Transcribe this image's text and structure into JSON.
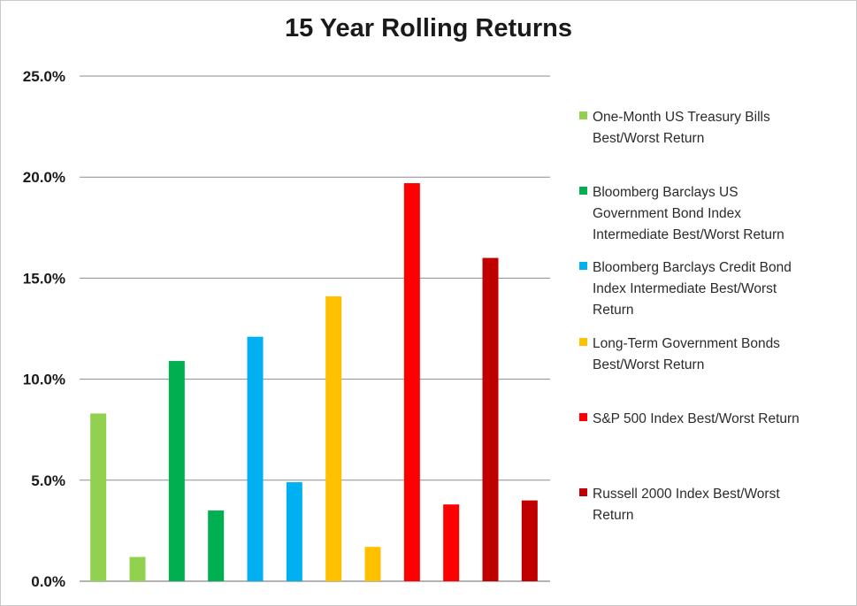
{
  "chart_data": {
    "type": "bar",
    "title": "15 Year Rolling Returns",
    "xlabel": "",
    "ylabel": "",
    "ylim": [
      0,
      25
    ],
    "yticks": [
      "0.0%",
      "5.0%",
      "10.0%",
      "15.0%",
      "20.0%",
      "25.0%"
    ],
    "grid": true,
    "legend_position": "right",
    "bars": [
      {
        "series": 0,
        "value": 8.3
      },
      {
        "series": 0,
        "value": 1.2
      },
      {
        "series": 1,
        "value": 10.9
      },
      {
        "series": 1,
        "value": 3.5
      },
      {
        "series": 2,
        "value": 12.1
      },
      {
        "series": 2,
        "value": 4.9
      },
      {
        "series": 3,
        "value": 14.1
      },
      {
        "series": 3,
        "value": 1.7
      },
      {
        "series": 4,
        "value": 19.7
      },
      {
        "series": 4,
        "value": 3.8
      },
      {
        "series": 5,
        "value": 16.0
      },
      {
        "series": 5,
        "value": 4.0
      }
    ],
    "series": [
      {
        "name": "One-Month US Treasury Bills Best/Worst Return",
        "lines": [
          "One-Month US Treasury Bills",
          "Best/Worst Return"
        ],
        "color": "#92d050"
      },
      {
        "name": "Bloomberg Barclays US Government Bond Index Intermediate Best/Worst Return",
        "lines": [
          "Bloomberg Barclays US",
          "Government Bond Index",
          "Intermediate Best/Worst Return"
        ],
        "color": "#00b050"
      },
      {
        "name": "Bloomberg Barclays Credit Bond Index Intermediate Best/Worst Return",
        "lines": [
          "Bloomberg Barclays Credit Bond",
          "Index Intermediate Best/Worst",
          "Return"
        ],
        "color": "#00b0f0"
      },
      {
        "name": "Long-Term Government Bonds Best/Worst Return",
        "lines": [
          "Long-Term Government Bonds",
          "Best/Worst Return"
        ],
        "color": "#ffc000"
      },
      {
        "name": "S&P 500 Index Best/Worst Return",
        "lines": [
          "S&P 500 Index Best/Worst Return"
        ],
        "color": "#ff0000"
      },
      {
        "name": "Russell 2000 Index Best/Worst Return",
        "lines": [
          "Russell 2000 Index Best/Worst",
          "Return"
        ],
        "color": "#c00000"
      }
    ]
  }
}
